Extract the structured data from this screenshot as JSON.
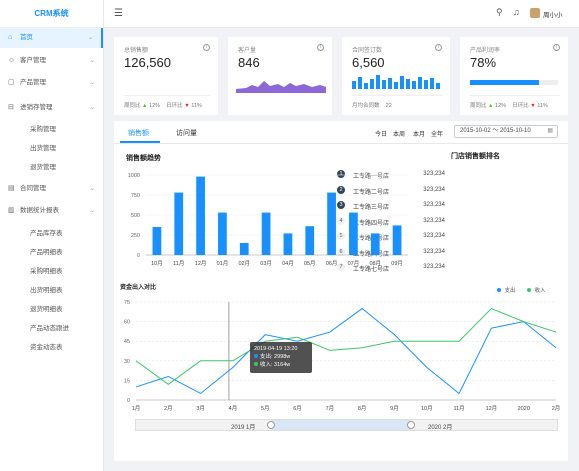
{
  "app": {
    "logo": "CRM系统"
  },
  "sidebar": {
    "items": [
      {
        "label": "首页",
        "icon": "home-icon",
        "glyph": "⌂",
        "active": true
      },
      {
        "label": "客户管理",
        "icon": "user-icon",
        "glyph": "☺"
      },
      {
        "label": "产品管理",
        "icon": "box-icon",
        "glyph": "▢"
      },
      {
        "label": "进销存管理",
        "icon": "cart-icon",
        "glyph": "⊟"
      },
      {
        "label": "合同管理",
        "icon": "file-icon",
        "glyph": "▤"
      },
      {
        "label": "数据统计报表",
        "icon": "chart-icon",
        "glyph": "▥"
      }
    ],
    "arrow": "⌄",
    "sub_inventory": [
      "采购管理",
      "出货管理",
      "退货管理"
    ],
    "sub_reports": [
      "产品库存表",
      "产品明细表",
      "采购明细表",
      "出货明细表",
      "退货明细表",
      "产品动态跟进",
      "资金动态表"
    ]
  },
  "topbar": {
    "username": "周小小"
  },
  "cards": [
    {
      "label": "总销售额",
      "value": "126,560",
      "week_label": "周同比",
      "week_val": "12%",
      "day_label": "日环比",
      "day_val": "11%"
    },
    {
      "label": "客户量",
      "value": "846"
    },
    {
      "label": "合同签订数",
      "value": "6,560",
      "foot_label": "月均合同数",
      "foot_val": "22"
    },
    {
      "label": "产品利润率",
      "value": "78%",
      "progress": 0.78,
      "week_label": "周同比",
      "week_val": "12%",
      "day_label": "日环比",
      "day_val": "11%"
    }
  ],
  "tabs": {
    "sales": "销售额",
    "visits": "访问量"
  },
  "date_filters": [
    "今日",
    "本周",
    "本月",
    "全年"
  ],
  "date_range": "2015-10-02 ～ 2015-10-10",
  "bar_section_title": "销售额趋势",
  "ranking": {
    "title": "门店销售额排名",
    "items": [
      {
        "rank": "1",
        "name": "工专路一号店",
        "value": "323,234"
      },
      {
        "rank": "2",
        "name": "工专路二号店",
        "value": "323,234"
      },
      {
        "rank": "3",
        "name": "工专路三号店",
        "value": "323,234"
      },
      {
        "rank": "4",
        "name": "工专路四号店",
        "value": "323,234"
      },
      {
        "rank": "5",
        "name": "工专路五号店",
        "value": "323,234"
      },
      {
        "rank": "6",
        "name": "工专路六号店",
        "value": "323,234"
      },
      {
        "rank": "7",
        "name": "工专路七号店",
        "value": "323,234"
      }
    ]
  },
  "tooltip": {
    "title": "2019-04-19 13:20",
    "line1": "支出: 2998w",
    "line2": "收入: 3164w"
  },
  "slider": {
    "start": "2019 1月",
    "end": "2020 2月"
  },
  "colors": {
    "accent": "#1890ff",
    "income": "#3ec46d",
    "expense": "#1890ff",
    "area": "#8e67d6"
  },
  "chart_data": [
    {
      "type": "bar",
      "categories": [
        "10月",
        "11月",
        "12月",
        "01月",
        "02月",
        "03月",
        "04月",
        "05月",
        "06月",
        "07月",
        "08月",
        "09月"
      ],
      "values": [
        350,
        780,
        980,
        530,
        150,
        530,
        270,
        360,
        780,
        530,
        270,
        370
      ],
      "title": "销售额趋势",
      "ylim": [
        0,
        1000
      ],
      "yticks": [
        "0",
        "250",
        "500",
        "750",
        "1000"
      ]
    },
    {
      "type": "line",
      "title": "资金出入对比",
      "x": [
        "1月",
        "2月",
        "3月",
        "4月",
        "5月",
        "6月",
        "7月",
        "8月",
        "9月",
        "10月",
        "11月",
        "12月",
        "2020",
        "2月"
      ],
      "ylim": [
        0,
        75
      ],
      "yticks": [
        "0",
        "15",
        "30",
        "45",
        "60",
        "75"
      ],
      "series": [
        {
          "name": "支出",
          "values": [
            10,
            18,
            5,
            25,
            50,
            45,
            52,
            70,
            50,
            25,
            5,
            55,
            60,
            40
          ]
        },
        {
          "name": "收入",
          "values": [
            30,
            12,
            30,
            30,
            45,
            48,
            38,
            40,
            45,
            45,
            45,
            70,
            60,
            52
          ]
        }
      ]
    }
  ]
}
